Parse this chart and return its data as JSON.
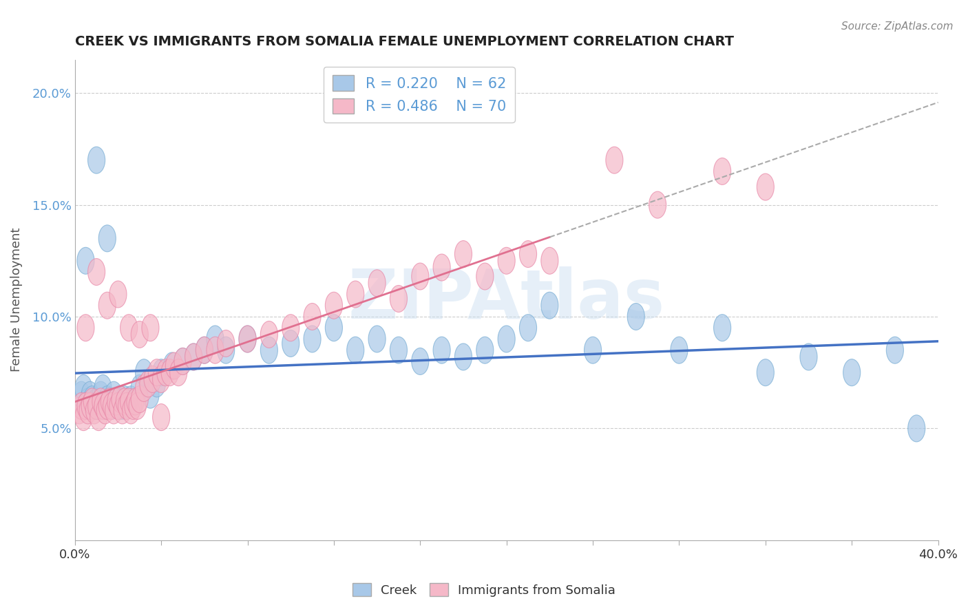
{
  "title": "CREEK VS IMMIGRANTS FROM SOMALIA FEMALE UNEMPLOYMENT CORRELATION CHART",
  "source": "Source: ZipAtlas.com",
  "ylabel": "Female Unemployment",
  "xlim": [
    0.0,
    0.4
  ],
  "ylim": [
    0.0,
    0.215
  ],
  "yticks": [
    0.05,
    0.1,
    0.15,
    0.2
  ],
  "ytick_labels": [
    "5.0%",
    "10.0%",
    "15.0%",
    "20.0%"
  ],
  "xtick_labels_show": [
    "0.0%",
    "40.0%"
  ],
  "creek_color": "#a8c8e8",
  "creek_edge_color": "#7aaed4",
  "somalia_color": "#f5b8c8",
  "somalia_edge_color": "#e888a8",
  "creek_line_color": "#4472c4",
  "somalia_line_color": "#e07090",
  "legend_creek_R": "R = 0.220",
  "legend_creek_N": "N = 62",
  "legend_somalia_R": "R = 0.486",
  "legend_somalia_N": "N = 70",
  "watermark": "ZIPAtlas",
  "background_color": "#ffffff",
  "creek_x": [
    0.003,
    0.004,
    0.005,
    0.006,
    0.007,
    0.008,
    0.009,
    0.01,
    0.011,
    0.012,
    0.013,
    0.014,
    0.015,
    0.016,
    0.017,
    0.018,
    0.019,
    0.02,
    0.021,
    0.022,
    0.023,
    0.024,
    0.025,
    0.026,
    0.03,
    0.032,
    0.035,
    0.038,
    0.04,
    0.045,
    0.05,
    0.055,
    0.06,
    0.065,
    0.07,
    0.08,
    0.09,
    0.1,
    0.11,
    0.12,
    0.13,
    0.14,
    0.15,
    0.16,
    0.17,
    0.18,
    0.19,
    0.2,
    0.21,
    0.22,
    0.24,
    0.26,
    0.28,
    0.3,
    0.32,
    0.34,
    0.36,
    0.38,
    0.39,
    0.005,
    0.01,
    0.015
  ],
  "creek_y": [
    0.065,
    0.068,
    0.06,
    0.062,
    0.065,
    0.063,
    0.06,
    0.062,
    0.06,
    0.065,
    0.068,
    0.06,
    0.063,
    0.062,
    0.06,
    0.065,
    0.062,
    0.06,
    0.063,
    0.06,
    0.063,
    0.06,
    0.062,
    0.063,
    0.068,
    0.075,
    0.065,
    0.07,
    0.075,
    0.078,
    0.08,
    0.082,
    0.085,
    0.09,
    0.085,
    0.09,
    0.085,
    0.088,
    0.09,
    0.095,
    0.085,
    0.09,
    0.085,
    0.08,
    0.085,
    0.082,
    0.085,
    0.09,
    0.095,
    0.105,
    0.085,
    0.1,
    0.085,
    0.095,
    0.075,
    0.082,
    0.075,
    0.085,
    0.05,
    0.125,
    0.17,
    0.135
  ],
  "somalia_x": [
    0.002,
    0.003,
    0.004,
    0.005,
    0.006,
    0.007,
    0.008,
    0.009,
    0.01,
    0.011,
    0.012,
    0.013,
    0.014,
    0.015,
    0.016,
    0.017,
    0.018,
    0.019,
    0.02,
    0.021,
    0.022,
    0.023,
    0.024,
    0.025,
    0.026,
    0.027,
    0.028,
    0.029,
    0.03,
    0.032,
    0.034,
    0.036,
    0.038,
    0.04,
    0.042,
    0.044,
    0.046,
    0.048,
    0.05,
    0.055,
    0.06,
    0.065,
    0.07,
    0.08,
    0.09,
    0.1,
    0.11,
    0.12,
    0.13,
    0.14,
    0.15,
    0.16,
    0.17,
    0.18,
    0.19,
    0.2,
    0.21,
    0.22,
    0.25,
    0.27,
    0.3,
    0.32,
    0.005,
    0.01,
    0.015,
    0.02,
    0.025,
    0.03,
    0.035,
    0.04
  ],
  "somalia_y": [
    0.058,
    0.06,
    0.055,
    0.06,
    0.058,
    0.06,
    0.062,
    0.058,
    0.06,
    0.055,
    0.062,
    0.06,
    0.058,
    0.06,
    0.062,
    0.06,
    0.058,
    0.062,
    0.06,
    0.063,
    0.058,
    0.062,
    0.06,
    0.062,
    0.058,
    0.06,
    0.062,
    0.06,
    0.063,
    0.068,
    0.07,
    0.072,
    0.075,
    0.072,
    0.075,
    0.075,
    0.078,
    0.075,
    0.08,
    0.082,
    0.085,
    0.085,
    0.088,
    0.09,
    0.092,
    0.095,
    0.1,
    0.105,
    0.11,
    0.115,
    0.108,
    0.118,
    0.122,
    0.128,
    0.118,
    0.125,
    0.128,
    0.125,
    0.17,
    0.15,
    0.165,
    0.158,
    0.095,
    0.12,
    0.105,
    0.11,
    0.095,
    0.092,
    0.095,
    0.055
  ]
}
